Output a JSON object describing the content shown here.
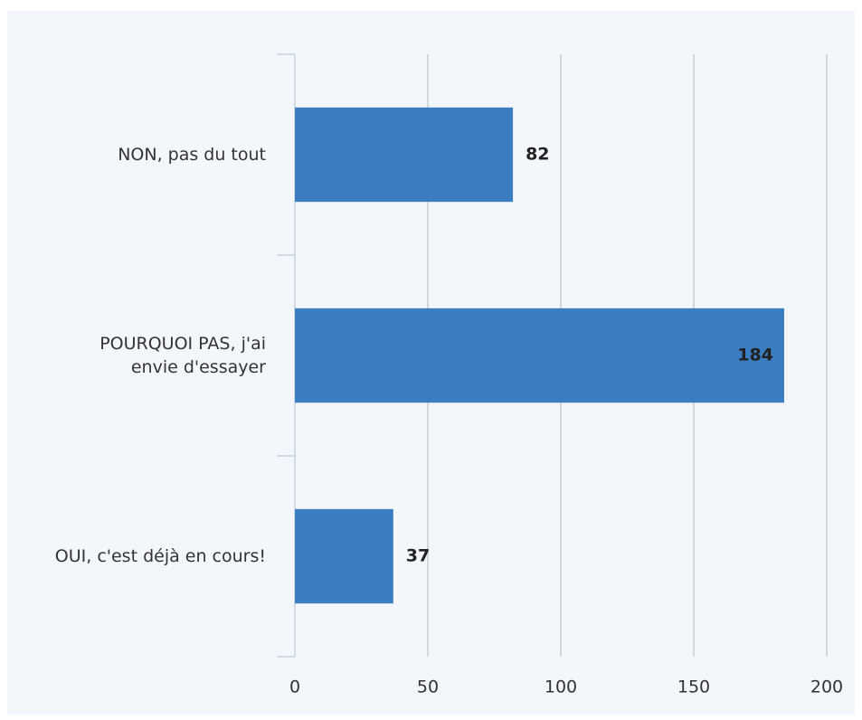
{
  "chart_data": {
    "type": "bar",
    "orientation": "horizontal",
    "categories": [
      "NON, pas du tout",
      "POURQUOI PAS, j'ai envie d'essayer",
      "OUI, c'est déjà en cours!"
    ],
    "values": [
      82,
      184,
      37
    ],
    "color": "#3a7dc1",
    "xlim": [
      0,
      200
    ],
    "xticks": [
      0,
      50,
      100,
      150,
      200
    ],
    "grid": true
  }
}
